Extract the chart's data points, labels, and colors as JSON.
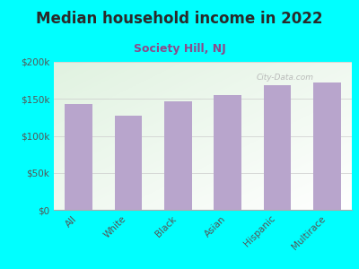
{
  "title": "Median household income in 2022",
  "subtitle": "Society Hill, NJ",
  "categories": [
    "All",
    "White",
    "Black",
    "Asian",
    "Hispanic",
    "Multirace"
  ],
  "values": [
    143000,
    127000,
    147000,
    155000,
    168000,
    172000
  ],
  "bar_color": "#b8a5cc",
  "background_outer": "#00ffff",
  "title_color": "#2a2a2a",
  "subtitle_color": "#8b4a8b",
  "tick_color": "#555555",
  "grid_color": "#cccccc",
  "watermark": "City-Data.com",
  "ylim": [
    0,
    200000
  ],
  "yticks": [
    0,
    50000,
    100000,
    150000,
    200000
  ],
  "ytick_labels": [
    "$0",
    "$50k",
    "$100k",
    "$150k",
    "$200k"
  ],
  "title_fontsize": 12,
  "subtitle_fontsize": 9,
  "tick_fontsize": 7.5
}
